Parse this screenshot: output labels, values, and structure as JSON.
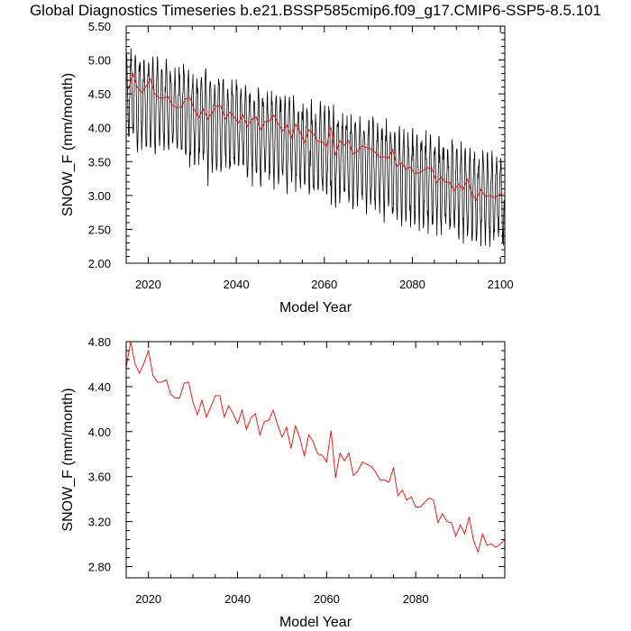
{
  "title": "Global Diagnostics Timeseries b.e21.BSSP585cmip6.f09_g17.CMIP6-SSP5-8.5.101",
  "colors": {
    "monthly": "#000000",
    "annual": "#ff0000",
    "axis": "#000000"
  },
  "chart_data": [
    {
      "type": "line",
      "xlabel": "Model Year",
      "ylabel": "SNOW_F (mm/month)",
      "xlim": [
        2015,
        2101
      ],
      "ylim": [
        2.0,
        5.5
      ],
      "x_ticks": [
        2020,
        2040,
        2060,
        2080,
        2100
      ],
      "x_tick_labels": [
        "2020",
        "2040",
        "2060",
        "2080",
        "2100"
      ],
      "y_ticks": [
        2.0,
        2.5,
        3.0,
        3.5,
        4.0,
        4.5,
        5.0,
        5.5
      ],
      "y_tick_labels": [
        "2.00",
        "2.50",
        "3.00",
        "3.50",
        "4.00",
        "4.50",
        "5.00",
        "5.50"
      ],
      "series": [
        {
          "color": "#000000",
          "monthly_cycle": {
            "annual_mean_trend": [
              [
                2015,
                4.55
              ],
              [
                2100,
                3.0
              ]
            ],
            "seasonal_peak_above_mean": 0.5,
            "seasonal_trough_below_mean": 0.7,
            "min_observed": 2.1,
            "max_observed": 5.3
          }
        },
        {
          "color": "#ff0000",
          "x": [
            2015.5,
            2016.5,
            2017.5,
            2018.5,
            2019.5,
            2020.5,
            2021.5,
            2022.5,
            2023.5,
            2024.5,
            2025.5,
            2026.5,
            2027.5,
            2028.5,
            2029.5,
            2030.5,
            2031.5,
            2032.5,
            2033.5,
            2034.5,
            2035.5,
            2036.5,
            2037.5,
            2038.5,
            2039.5,
            2040.5,
            2041.5,
            2042.5,
            2043.5,
            2044.5,
            2045.5,
            2046.5,
            2047.5,
            2048.5,
            2049.5,
            2050.5,
            2051.5,
            2052.5,
            2053.5,
            2054.5,
            2055.5,
            2056.5,
            2057.5,
            2058.5,
            2059.5,
            2060.5,
            2061.5,
            2062.5,
            2063.5,
            2064.5,
            2065.5,
            2066.5,
            2067.5,
            2068.5,
            2069.5,
            2070.5,
            2071.5,
            2072.5,
            2073.5,
            2074.5,
            2075.5,
            2076.5,
            2077.5,
            2078.5,
            2079.5,
            2080.5,
            2081.5,
            2082.5,
            2083.5,
            2084.5,
            2085.5,
            2086.5,
            2087.5,
            2088.5,
            2089.5,
            2090.5,
            2091.5,
            2092.5,
            2093.5,
            2094.5,
            2095.5,
            2096.5,
            2097.5,
            2098.5,
            2099.5,
            2100.5
          ],
          "values": [
            4.57,
            4.8,
            4.6,
            4.52,
            4.61,
            4.72,
            4.5,
            4.44,
            4.44,
            4.46,
            4.33,
            4.3,
            4.3,
            4.43,
            4.44,
            4.26,
            4.15,
            4.28,
            4.13,
            4.22,
            4.32,
            4.32,
            4.13,
            4.23,
            4.16,
            4.07,
            4.19,
            4.02,
            4.12,
            4.16,
            3.97,
            4.09,
            4.1,
            4.19,
            4.06,
            3.95,
            4.04,
            3.85,
            4.05,
            3.94,
            3.78,
            3.97,
            3.91,
            3.8,
            3.79,
            3.73,
            4.01,
            3.59,
            3.81,
            3.74,
            3.81,
            3.61,
            3.65,
            3.73,
            3.71,
            3.69,
            3.64,
            3.57,
            3.57,
            3.55,
            3.68,
            3.43,
            3.48,
            3.39,
            3.42,
            3.33,
            3.33,
            3.37,
            3.41,
            3.39,
            3.19,
            3.27,
            3.2,
            3.19,
            3.07,
            3.17,
            3.09,
            3.24,
            3.03,
            2.93,
            3.09,
            2.99,
            3.0,
            2.97,
            3.0,
            3.04
          ]
        }
      ]
    },
    {
      "type": "line",
      "xlabel": "Model Year",
      "ylabel": "SNOW_F (mm/month)",
      "xlim": [
        2015,
        2100
      ],
      "ylim": [
        2.7,
        4.8
      ],
      "x_ticks": [
        2020,
        2040,
        2060,
        2080
      ],
      "x_tick_labels": [
        "2020",
        "2040",
        "2060",
        "2080"
      ],
      "y_ticks": [
        2.8,
        3.2,
        3.6,
        4.0,
        4.4,
        4.8
      ],
      "y_tick_labels": [
        "2.80",
        "3.20",
        "3.60",
        "4.00",
        "4.40",
        "4.80"
      ],
      "series": [
        {
          "color": "#ff0000",
          "x": [
            2015,
            2016,
            2017,
            2018,
            2019,
            2020,
            2021,
            2022,
            2023,
            2024,
            2025,
            2026,
            2027,
            2028,
            2029,
            2030,
            2031,
            2032,
            2033,
            2034,
            2035,
            2036,
            2037,
            2038,
            2039,
            2040,
            2041,
            2042,
            2043,
            2044,
            2045,
            2046,
            2047,
            2048,
            2049,
            2050,
            2051,
            2052,
            2053,
            2054,
            2055,
            2056,
            2057,
            2058,
            2059,
            2060,
            2061,
            2062,
            2063,
            2064,
            2065,
            2066,
            2067,
            2068,
            2069,
            2070,
            2071,
            2072,
            2073,
            2074,
            2075,
            2076,
            2077,
            2078,
            2079,
            2080,
            2081,
            2082,
            2083,
            2084,
            2085,
            2086,
            2087,
            2088,
            2089,
            2090,
            2091,
            2092,
            2093,
            2094,
            2095,
            2096,
            2097,
            2098,
            2099,
            2100
          ],
          "values": [
            4.57,
            4.8,
            4.6,
            4.52,
            4.61,
            4.72,
            4.5,
            4.44,
            4.44,
            4.46,
            4.33,
            4.3,
            4.3,
            4.43,
            4.44,
            4.26,
            4.15,
            4.28,
            4.13,
            4.22,
            4.32,
            4.32,
            4.13,
            4.23,
            4.16,
            4.07,
            4.19,
            4.02,
            4.12,
            4.16,
            3.97,
            4.09,
            4.1,
            4.19,
            4.06,
            3.95,
            4.04,
            3.85,
            4.05,
            3.94,
            3.78,
            3.97,
            3.91,
            3.8,
            3.79,
            3.73,
            4.01,
            3.59,
            3.81,
            3.74,
            3.81,
            3.61,
            3.65,
            3.73,
            3.71,
            3.69,
            3.64,
            3.57,
            3.57,
            3.55,
            3.68,
            3.43,
            3.48,
            3.39,
            3.42,
            3.33,
            3.33,
            3.37,
            3.41,
            3.39,
            3.19,
            3.27,
            3.2,
            3.19,
            3.07,
            3.17,
            3.09,
            3.24,
            3.03,
            2.93,
            3.09,
            2.99,
            3.0,
            2.97,
            3.0,
            3.04
          ]
        }
      ]
    }
  ]
}
